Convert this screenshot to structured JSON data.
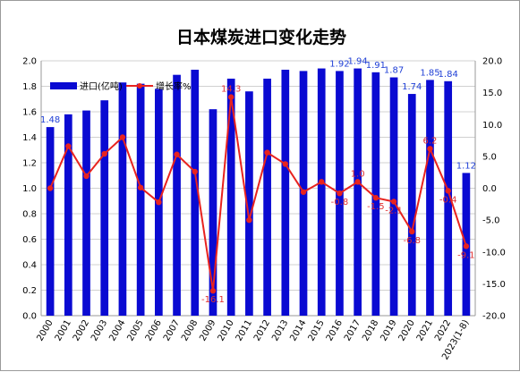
{
  "chart_data": {
    "type": "bar",
    "title": "日本煤炭进口变化走势",
    "categories": [
      "2000",
      "2001",
      "2002",
      "2003",
      "2004",
      "2005",
      "2006",
      "2007",
      "2008",
      "2009",
      "2010",
      "2011",
      "2012",
      "2013",
      "2014",
      "2015",
      "2016",
      "2017",
      "2018",
      "2019",
      "2020",
      "2021",
      "2022",
      "2023(1-8)"
    ],
    "series": [
      {
        "name": "进口(亿吨)",
        "type": "bar",
        "axis": "left",
        "color": "#0a0ad2",
        "values": [
          1.48,
          1.58,
          1.61,
          1.69,
          1.83,
          1.82,
          1.78,
          1.89,
          1.93,
          1.62,
          1.86,
          1.76,
          1.86,
          1.93,
          1.92,
          1.94,
          1.92,
          1.94,
          1.91,
          1.87,
          1.74,
          1.85,
          1.84,
          1.12
        ],
        "labels": [
          "1.48",
          "",
          "",
          "",
          "",
          "",
          "",
          "",
          "",
          "",
          "",
          "",
          "",
          "",
          "",
          "",
          "1.92",
          "1.94",
          "1.91",
          "1.87",
          "1.74",
          "1.85",
          "1.84",
          "1.12"
        ]
      },
      {
        "name": "增长率%",
        "type": "line",
        "axis": "right",
        "color": "#e8231f",
        "values": [
          0.0,
          6.6,
          1.9,
          5.4,
          8.0,
          0.1,
          -2.2,
          5.3,
          2.6,
          -16.1,
          14.3,
          -5.0,
          5.6,
          3.8,
          -0.6,
          1.0,
          -0.8,
          1.0,
          -1.5,
          -2.1,
          -6.8,
          6.2,
          -0.4,
          -9.1
        ],
        "labels": [
          "",
          "",
          "",
          "",
          "",
          "",
          "",
          "",
          "",
          "-16.1",
          "14.3",
          "",
          "",
          "",
          "",
          "",
          "-0.8",
          "1.0",
          "-1.5",
          "-2.1",
          "-6.8",
          "6.2",
          "-0.4",
          "-9.1"
        ]
      }
    ],
    "y_left": {
      "min": 0.0,
      "max": 2.0,
      "step": 0.2,
      "tick_labels": [
        "0.0",
        "0.2",
        "0.4",
        "0.6",
        "0.8",
        "1.0",
        "1.2",
        "1.4",
        "1.6",
        "1.8",
        "2.0"
      ]
    },
    "y_right": {
      "min": -20.0,
      "max": 20.0,
      "step": 5.0,
      "tick_labels": [
        "-20.0",
        "-15.0",
        "-10.0",
        "-5.0",
        "0.0",
        "5.0",
        "10.0",
        "15.0",
        "20.0"
      ]
    },
    "grid": "horizontal",
    "legend_position": "top-left"
  }
}
